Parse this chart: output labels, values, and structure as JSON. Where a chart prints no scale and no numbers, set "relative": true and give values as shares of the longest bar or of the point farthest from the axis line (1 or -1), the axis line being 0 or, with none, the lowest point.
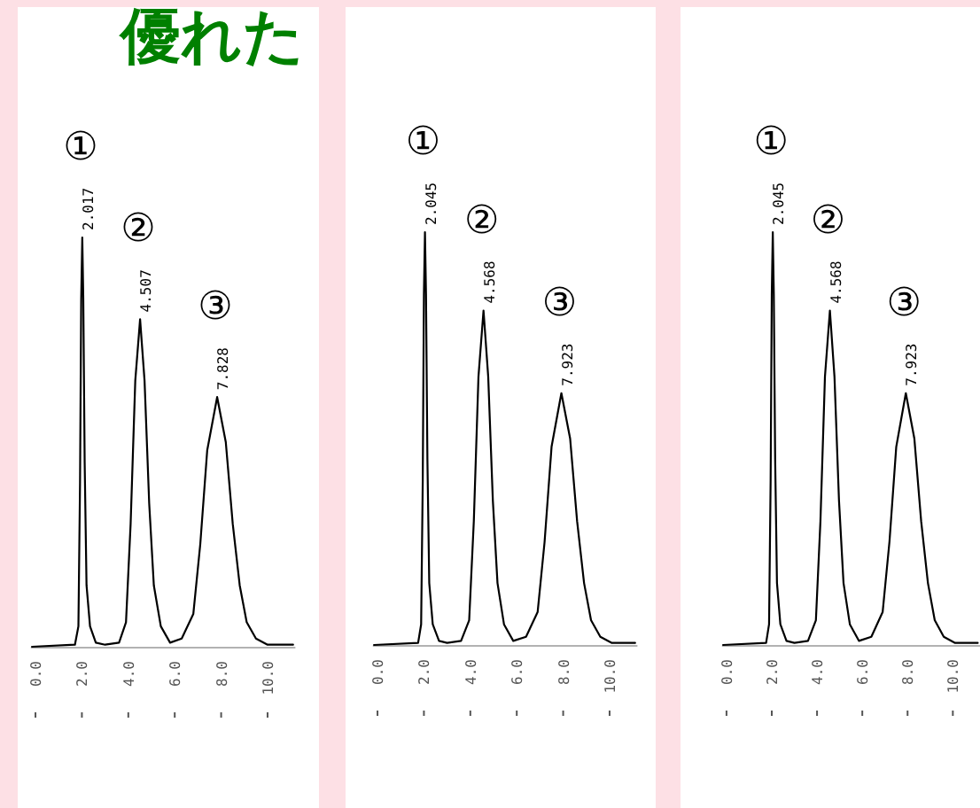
{
  "chart_data": [
    {
      "type": "line",
      "title": "優れた",
      "relative": true,
      "color": "#000000",
      "tick_labels": "x",
      "xlim": [
        -0.2,
        11.2
      ],
      "xticks": [
        {
          "value": 0,
          "label": "0.0"
        },
        {
          "value": 2,
          "label": "2.0"
        },
        {
          "value": 4,
          "label": "4.0"
        },
        {
          "value": 6,
          "label": "6.0"
        },
        {
          "value": 8,
          "label": "8.0"
        },
        {
          "value": 10,
          "label": "10.0"
        }
      ],
      "x": [
        -0.15,
        1.7,
        1.85,
        1.92,
        1.97,
        2.017,
        2.06,
        2.12,
        2.2,
        2.35,
        2.6,
        3.0,
        3.6,
        3.9,
        4.1,
        4.3,
        4.507,
        4.7,
        4.9,
        5.1,
        5.4,
        5.8,
        6.3,
        6.8,
        7.1,
        7.4,
        7.828,
        8.2,
        8.5,
        8.8,
        9.1,
        9.5,
        10,
        11.1
      ],
      "values": [
        0,
        0.005,
        0.05,
        0.4,
        0.85,
        1,
        0.85,
        0.45,
        0.15,
        0.05,
        0.01,
        0.005,
        0.01,
        0.06,
        0.3,
        0.65,
        0.8,
        0.65,
        0.35,
        0.15,
        0.05,
        0.01,
        0.02,
        0.08,
        0.25,
        0.48,
        0.61,
        0.5,
        0.3,
        0.15,
        0.06,
        0.02,
        0.005,
        0.005
      ],
      "annotations": [
        {
          "text": "①",
          "x": 2.017,
          "y": 1
        },
        {
          "text": "2.017",
          "x": 2.017,
          "y": 1
        },
        {
          "text": "②",
          "x": 4.507,
          "y": 0.8
        },
        {
          "text": "4.507",
          "x": 4.507,
          "y": 0.8
        },
        {
          "text": "③",
          "x": 7.828,
          "y": 0.61
        },
        {
          "text": "7.828",
          "x": 7.828,
          "y": 0.61
        }
      ]
    },
    {
      "type": "line",
      "relative": true,
      "color": "#000000",
      "tick_labels": "x",
      "xlim": [
        -0.2,
        11.2
      ],
      "xticks": [
        {
          "value": 0,
          "label": "0.0"
        },
        {
          "value": 2,
          "label": "2.0"
        },
        {
          "value": 4,
          "label": "4.0"
        },
        {
          "value": 6,
          "label": "6.0"
        },
        {
          "value": 8,
          "label": "8.0"
        },
        {
          "value": 10,
          "label": "10.0"
        }
      ],
      "x": [
        -0.15,
        1.75,
        1.88,
        1.95,
        2.0,
        2.045,
        2.09,
        2.15,
        2.23,
        2.38,
        2.65,
        3.0,
        3.6,
        3.95,
        4.15,
        4.35,
        4.568,
        4.77,
        4.97,
        5.17,
        5.45,
        5.85,
        6.4,
        6.9,
        7.2,
        7.5,
        7.923,
        8.3,
        8.6,
        8.9,
        9.2,
        9.6,
        10.1,
        11.1
      ],
      "values": [
        0,
        0.005,
        0.05,
        0.4,
        0.85,
        1,
        0.85,
        0.45,
        0.15,
        0.05,
        0.01,
        0.005,
        0.01,
        0.06,
        0.3,
        0.65,
        0.81,
        0.65,
        0.35,
        0.15,
        0.05,
        0.01,
        0.02,
        0.08,
        0.25,
        0.48,
        0.61,
        0.5,
        0.3,
        0.15,
        0.06,
        0.02,
        0.005,
        0.005
      ],
      "annotations": [
        {
          "text": "①",
          "x": 2.045,
          "y": 1
        },
        {
          "text": "2.045",
          "x": 2.045,
          "y": 1
        },
        {
          "text": "②",
          "x": 4.568,
          "y": 0.81
        },
        {
          "text": "4.568",
          "x": 4.568,
          "y": 0.81
        },
        {
          "text": "③",
          "x": 7.923,
          "y": 0.61
        },
        {
          "text": "7.923",
          "x": 7.923,
          "y": 0.61
        }
      ]
    },
    {
      "type": "line",
      "relative": true,
      "color": "#000000",
      "tick_labels": "x",
      "xlim": [
        -0.2,
        11.2
      ],
      "xticks": [
        {
          "value": 0,
          "label": "0.0"
        },
        {
          "value": 2,
          "label": "2.0"
        },
        {
          "value": 4,
          "label": "4.0"
        },
        {
          "value": 6,
          "label": "6.0"
        },
        {
          "value": 8,
          "label": "8.0"
        },
        {
          "value": 10,
          "label": "10.0"
        }
      ],
      "x": [
        -0.15,
        1.75,
        1.88,
        1.95,
        2.0,
        2.045,
        2.09,
        2.15,
        2.23,
        2.38,
        2.65,
        3.0,
        3.6,
        3.95,
        4.15,
        4.35,
        4.568,
        4.77,
        4.97,
        5.17,
        5.45,
        5.85,
        6.4,
        6.9,
        7.2,
        7.5,
        7.923,
        8.3,
        8.6,
        8.9,
        9.2,
        9.6,
        10.1,
        11.1
      ],
      "values": [
        0,
        0.005,
        0.05,
        0.4,
        0.85,
        1,
        0.85,
        0.45,
        0.15,
        0.05,
        0.01,
        0.005,
        0.01,
        0.06,
        0.3,
        0.65,
        0.81,
        0.65,
        0.35,
        0.15,
        0.05,
        0.01,
        0.02,
        0.08,
        0.25,
        0.48,
        0.61,
        0.5,
        0.3,
        0.15,
        0.06,
        0.02,
        0.005,
        0.005
      ],
      "annotations": [
        {
          "text": "①",
          "x": 2.045,
          "y": 1
        },
        {
          "text": "2.045",
          "x": 2.045,
          "y": 1
        },
        {
          "text": "②",
          "x": 4.568,
          "y": 0.81
        },
        {
          "text": "4.568",
          "x": 4.568,
          "y": 0.81
        },
        {
          "text": "③",
          "x": 7.923,
          "y": 0.61
        },
        {
          "text": "7.923",
          "x": 7.923,
          "y": 0.61
        }
      ]
    }
  ]
}
